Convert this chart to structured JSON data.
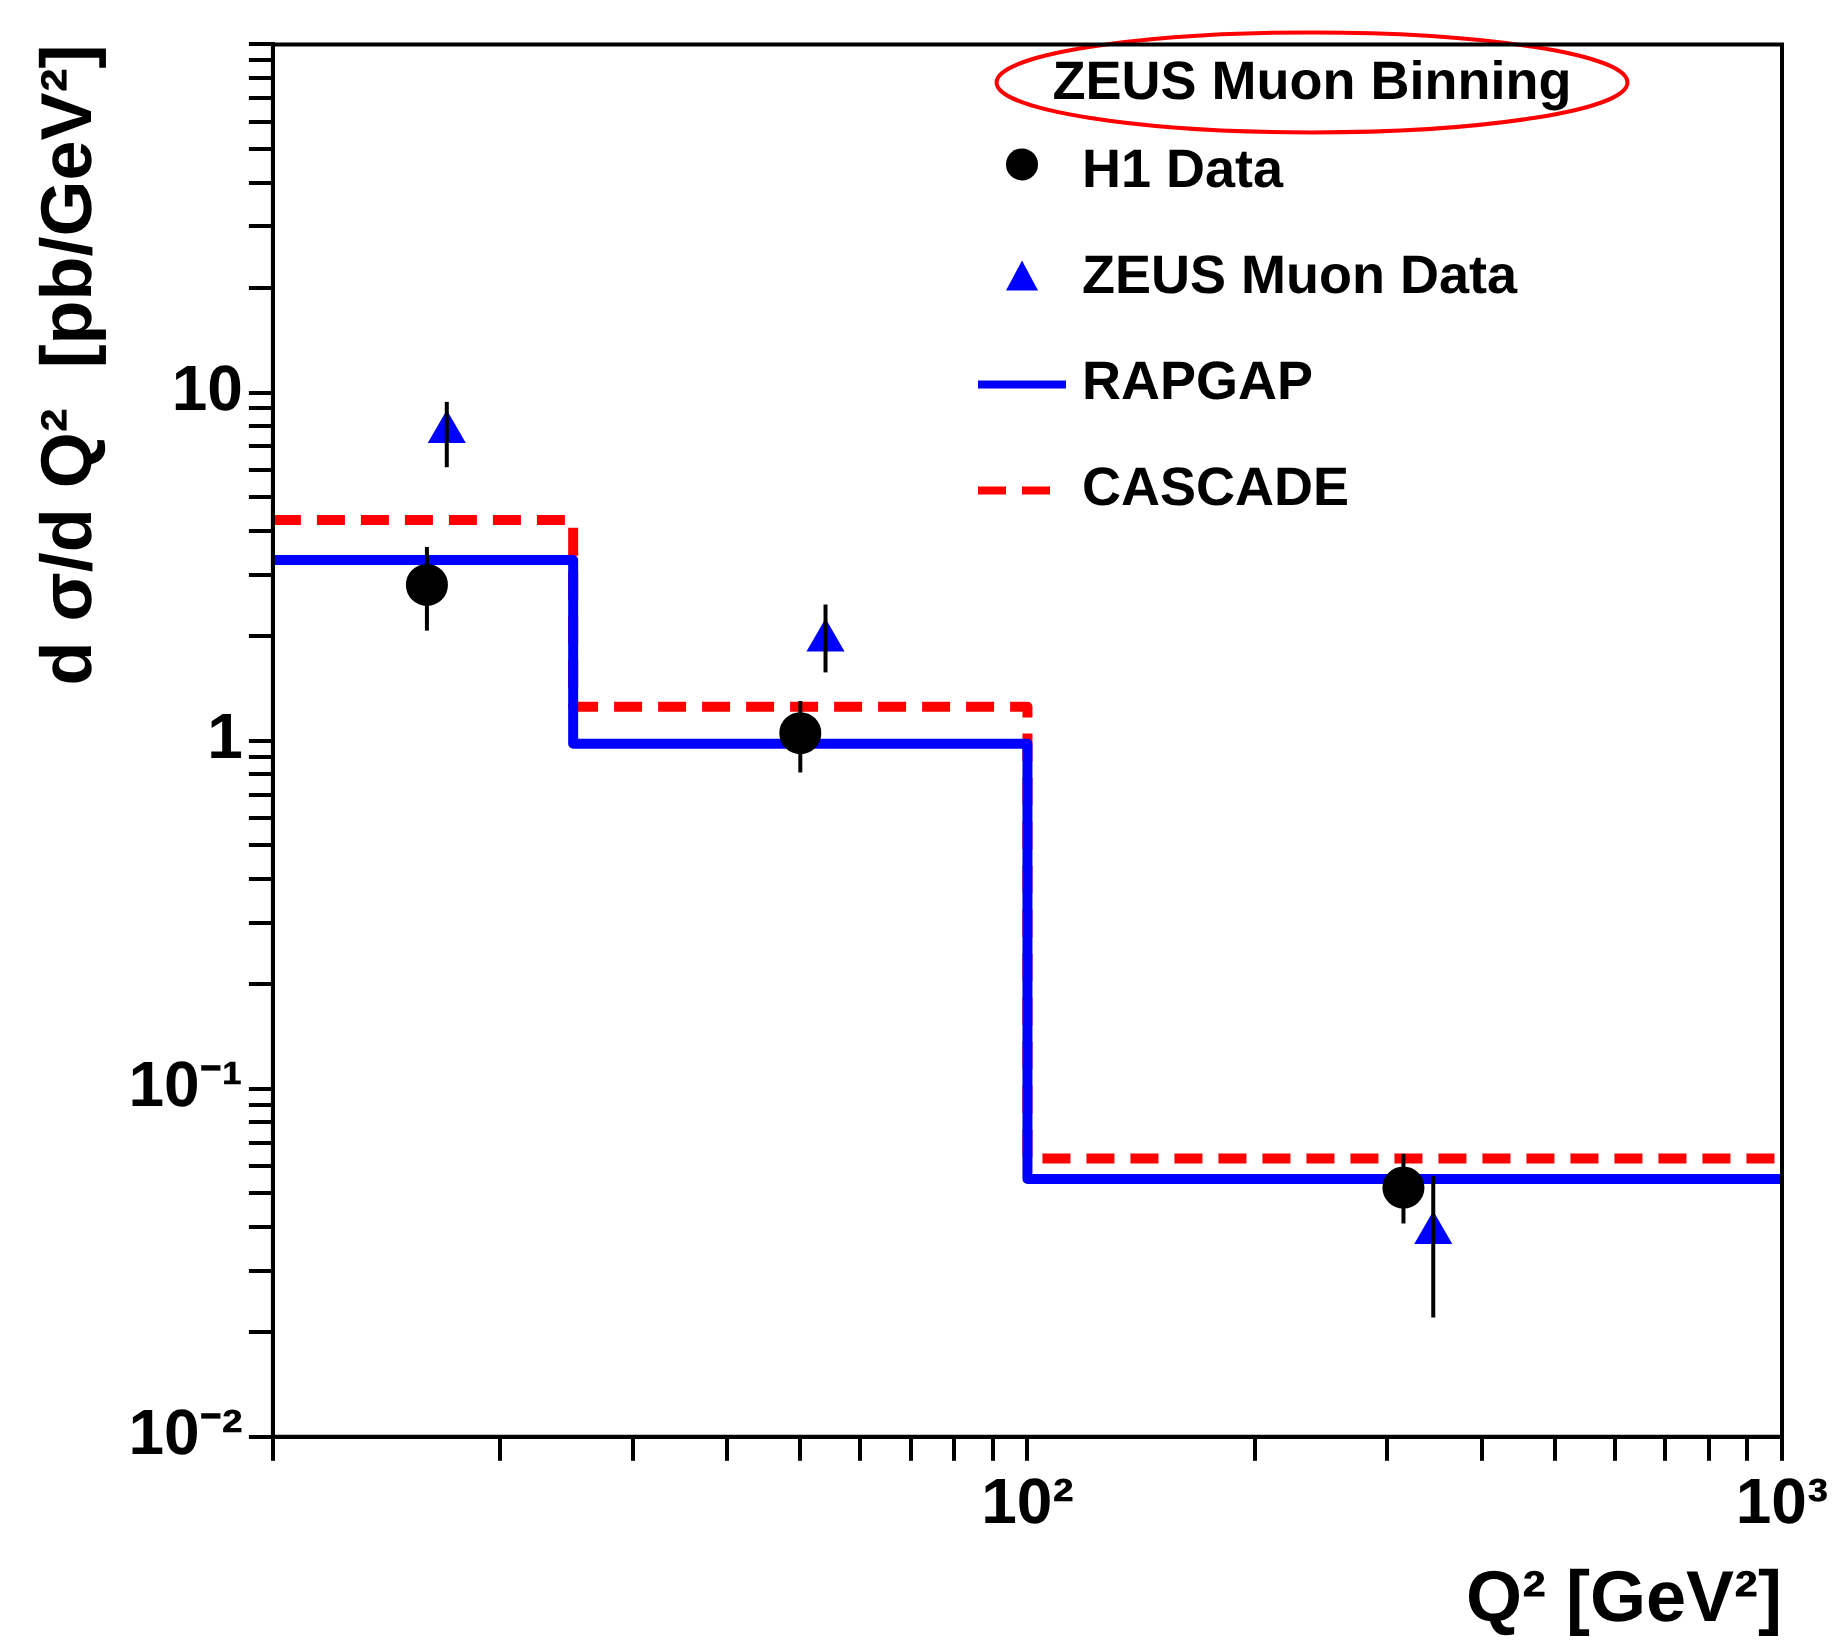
{
  "chart_data": {
    "type": "step",
    "xlabel": "Q² [GeV²]",
    "ylabel": "d σ/d Q²  [pb/GeV²]",
    "legend_title": "ZEUS Muon Binning",
    "legend": "top right",
    "log": "xy",
    "grid": false,
    "xlim": [
      10,
      1000
    ],
    "xticks": [
      {
        "value": 10,
        "label": null
      },
      {
        "value": 20,
        "label": null
      },
      {
        "value": 30,
        "label": null
      },
      {
        "value": 40,
        "label": null
      },
      {
        "value": 50,
        "label": null
      },
      {
        "value": 60,
        "label": null
      },
      {
        "value": 70,
        "label": null
      },
      {
        "value": 80,
        "label": null
      },
      {
        "value": 90,
        "label": null
      },
      {
        "value": 100,
        "label": "10²"
      },
      {
        "value": 200,
        "label": null
      },
      {
        "value": 300,
        "label": null
      },
      {
        "value": 400,
        "label": null
      },
      {
        "value": 500,
        "label": null
      },
      {
        "value": 600,
        "label": null
      },
      {
        "value": 700,
        "label": null
      },
      {
        "value": 800,
        "label": null
      },
      {
        "value": 900,
        "label": null
      },
      {
        "value": 1000,
        "label": "10³"
      }
    ],
    "ylim": [
      0.01,
      100
    ],
    "yticks": [
      {
        "value": 0.01,
        "label": "10⁻²"
      },
      {
        "value": 0.02,
        "label": null
      },
      {
        "value": 0.03,
        "label": null
      },
      {
        "value": 0.04,
        "label": null
      },
      {
        "value": 0.05,
        "label": null
      },
      {
        "value": 0.06,
        "label": null
      },
      {
        "value": 0.07,
        "label": null
      },
      {
        "value": 0.08,
        "label": null
      },
      {
        "value": 0.09,
        "label": null
      },
      {
        "value": 0.1,
        "label": "10⁻¹"
      },
      {
        "value": 0.2,
        "label": null
      },
      {
        "value": 0.3,
        "label": null
      },
      {
        "value": 0.4,
        "label": null
      },
      {
        "value": 0.5,
        "label": null
      },
      {
        "value": 0.6,
        "label": null
      },
      {
        "value": 0.7,
        "label": null
      },
      {
        "value": 0.8,
        "label": null
      },
      {
        "value": 0.9,
        "label": null
      },
      1,
      {
        "value": 2,
        "label": null
      },
      {
        "value": 3,
        "label": null
      },
      {
        "value": 4,
        "label": null
      },
      {
        "value": 5,
        "label": null
      },
      {
        "value": 6,
        "label": null
      },
      {
        "value": 7,
        "label": null
      },
      {
        "value": 8,
        "label": null
      },
      {
        "value": 9,
        "label": null
      },
      10,
      {
        "value": 20,
        "label": null
      },
      {
        "value": 30,
        "label": null
      },
      {
        "value": 40,
        "label": null
      },
      {
        "value": 50,
        "label": null
      },
      {
        "value": 60,
        "label": null
      },
      {
        "value": 70,
        "label": null
      },
      {
        "value": 80,
        "label": null
      },
      {
        "value": 90,
        "label": null
      },
      {
        "value": 100,
        "label": null
      }
    ],
    "series": [
      {
        "name": "H1 Data",
        "type": "scatter",
        "marker": "circle",
        "color": "#000000",
        "x": [
          16,
          50,
          315
        ],
        "values": [
          2.8,
          1.05,
          0.052
        ],
        "errors": [
          [
            2.07,
            3.6
          ],
          [
            0.81,
            1.3
          ],
          [
            0.041,
            0.065
          ]
        ]
      },
      {
        "name": "ZEUS Muon Data",
        "type": "scatter",
        "marker": "triangle",
        "color": "#0000ff",
        "x": [
          17,
          54,
          345
        ],
        "values": [
          7.7,
          1.94,
          0.0385
        ],
        "errors": [
          [
            6.1,
            9.4
          ],
          [
            1.57,
            2.46
          ],
          [
            0.022,
            0.056
          ]
        ]
      },
      {
        "name": "RAPGAP",
        "line_style": "solid",
        "color": "#0000ff",
        "x": [
          10,
          25,
          100,
          1000
        ],
        "values": [
          3.3,
          0.98,
          0.055,
          0.055
        ]
      },
      {
        "name": "CASCADE",
        "line_style": "dashed",
        "color": "#ff0000",
        "x": [
          10,
          25,
          100,
          1000
        ],
        "values": [
          4.3,
          1.25,
          0.063,
          0.063
        ]
      }
    ]
  }
}
